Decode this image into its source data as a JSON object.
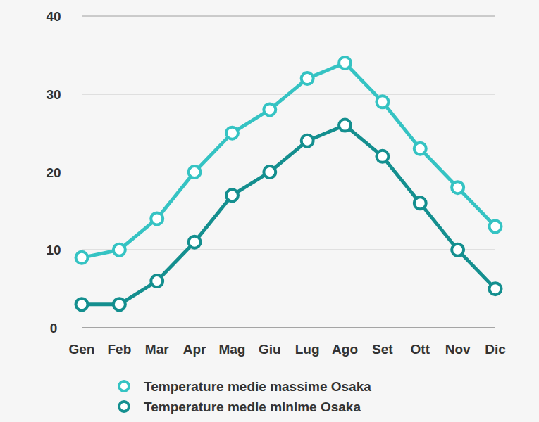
{
  "chart_data": {
    "type": "line",
    "categories": [
      "Gen",
      "Feb",
      "Mar",
      "Apr",
      "Mag",
      "Giu",
      "Lug",
      "Ago",
      "Set",
      "Ott",
      "Nov",
      "Dic"
    ],
    "series": [
      {
        "name": "Temperature medie massime Osaka",
        "color": "#35c3c3",
        "values": [
          9,
          10,
          14,
          20,
          25,
          28,
          32,
          34,
          29,
          23,
          18,
          13
        ]
      },
      {
        "name": "Temperature medie minime Osaka",
        "color": "#148f8f",
        "values": [
          3,
          3,
          6,
          11,
          17,
          20,
          24,
          26,
          22,
          16,
          10,
          5
        ]
      }
    ],
    "ylim": [
      0,
      40
    ],
    "yticks": [
      0,
      10,
      20,
      30,
      40
    ],
    "grid": true,
    "legend": "bottom",
    "marker": "circle",
    "line_style": "solid"
  }
}
